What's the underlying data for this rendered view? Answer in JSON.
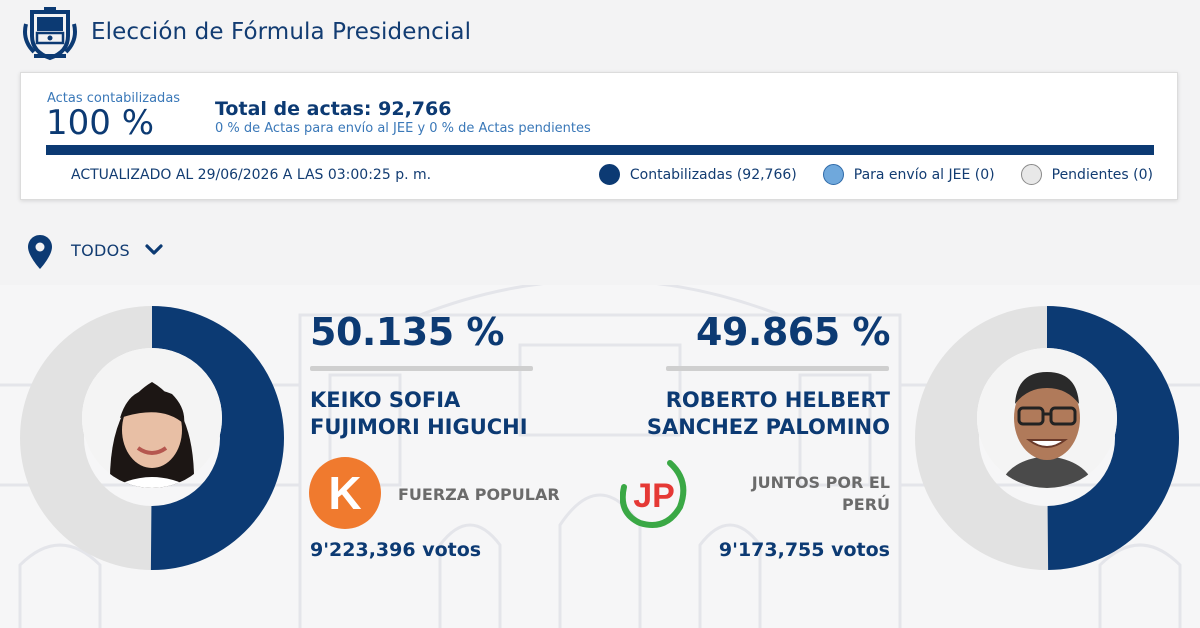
{
  "header": {
    "title": "Elección de Fórmula Presidencial",
    "emblem_icon": "peru-coat-of-arms-icon"
  },
  "summary": {
    "acts_label": "Actas contabilizadas",
    "acts_percent": "100 %",
    "acts_progress": 1.0,
    "total_acts": "Total de actas: 92,766",
    "total_sub": "0 % de Actas para envío al JEE y 0 % de Actas pendientes",
    "updated": "ACTUALIZADO AL 29/06/2026 A LAS 03:00:25 p. m.",
    "legend": [
      {
        "label": "Contabilizadas (92,766)",
        "color": "#0c3a73"
      },
      {
        "label": "Para envío al JEE (0)",
        "color": "#6fa8dc"
      },
      {
        "label": "Pendientes (0)",
        "color": "#e8e8e8"
      }
    ]
  },
  "filter": {
    "label": "TODOS",
    "pin_icon": "location-pin-icon",
    "chevron_icon": "chevron-down-icon"
  },
  "colors": {
    "primary": "#0c3a73",
    "donut_rest": "#e2e2e2",
    "fuerza_orange": "#f07a2e",
    "juntos_green": "#3aa845",
    "juntos_red": "#e53935"
  },
  "candidates": [
    {
      "percent": "50.135 %",
      "share": 0.50135,
      "name_line1": "KEIKO SOFIA",
      "name_line2": "FUJIMORI HIGUCHI",
      "party_line1": "FUERZA POPULAR",
      "party_line2": "",
      "party_logo_text": "K",
      "votes": "9'223,396 votos"
    },
    {
      "percent": "49.865 %",
      "share": 0.49865,
      "name_line1": "ROBERTO HELBERT",
      "name_line2": "SANCHEZ PALOMINO",
      "party_line1": "JUNTOS POR EL",
      "party_line2": "PERÚ",
      "party_logo_text": "JP",
      "votes": "9'173,755 votos"
    }
  ]
}
